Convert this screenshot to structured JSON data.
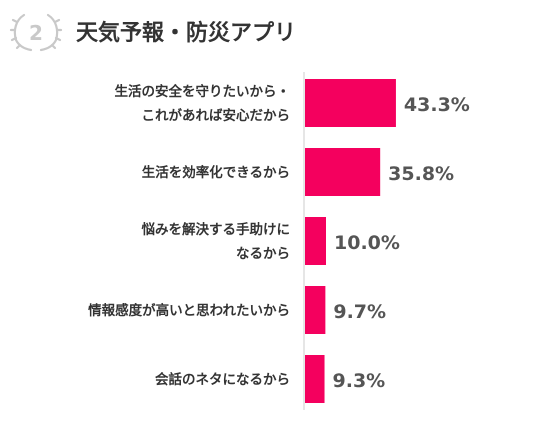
{
  "rank": {
    "number": "2"
  },
  "chart_data": {
    "type": "bar",
    "orientation": "horizontal",
    "title": "天気予報・防災アプリ",
    "categories": [
      [
        "生活の安全を守りたいから・",
        "これがあれば安心だから"
      ],
      [
        "生活を効率化できるから"
      ],
      [
        "悩みを解決する手助けに",
        "なるから"
      ],
      [
        "情報感度が高いと思われたいから"
      ],
      [
        "会話のネタになるから"
      ]
    ],
    "values": [
      43.3,
      35.8,
      10.0,
      9.7,
      9.3
    ],
    "value_labels": [
      "43.3%",
      "35.8%",
      "10.0%",
      "9.7%",
      "9.3%"
    ],
    "xlim": [
      0,
      100
    ],
    "grid": false,
    "colors": {
      "bar": "#f4005e",
      "text": "#333333",
      "value": "#555555",
      "axis": "#cccccc",
      "badge": "#c9c9c9"
    }
  }
}
